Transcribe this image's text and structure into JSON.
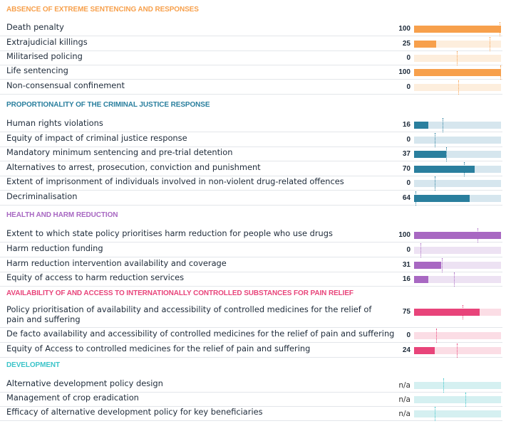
{
  "chart_data": {
    "type": "bar",
    "orientation": "horizontal",
    "xlim": [
      0,
      100
    ],
    "sections": [
      {
        "title": "ABSENCE OF EXTREME SENTENCING AND RESPONSES",
        "color": "#f7a04c",
        "light": "#fdeedd",
        "rows": [
          {
            "label": "Death penalty",
            "value": 100,
            "value_label": "100",
            "marker": 98
          },
          {
            "label": "Extrajudicial killings",
            "value": 25,
            "value_label": "25",
            "marker": 87
          },
          {
            "label": "Militarised policing",
            "value": 0,
            "value_label": "0",
            "marker": 49
          },
          {
            "label": "Life sentencing",
            "value": 100,
            "value_label": "100",
            "marker": 99
          },
          {
            "label": "Non-consensual confinement",
            "value": 0,
            "value_label": "0",
            "marker": 51
          }
        ]
      },
      {
        "title": "PROPORTIONALITY OF THE CRIMINAL JUSTICE RESPONSE",
        "color": "#2a7f9e",
        "light": "#d6e6ee",
        "rows": [
          {
            "label": "Human rights violations",
            "value": 16,
            "value_label": "16",
            "marker": 33
          },
          {
            "label": "Equity of impact of criminal justice response",
            "value": 0,
            "value_label": "0",
            "marker": 24
          },
          {
            "label": "Mandatory minimum sentencing and pre-trial detention",
            "value": 37,
            "value_label": "37",
            "marker": 37
          },
          {
            "label": "Alternatives to arrest, prosecution, conviction and punishment",
            "value": 70,
            "value_label": "70",
            "marker": 57
          },
          {
            "label": "Extent of imprisonment of individuals involved in non-violent drug-related offences",
            "value": 0,
            "value_label": "0",
            "marker": 24
          },
          {
            "label": "Decriminalisation",
            "value": 64,
            "value_label": "64",
            "marker": 2
          }
        ]
      },
      {
        "title": "HEALTH AND HARM REDUCTION",
        "color": "#a868c2",
        "light": "#ede2f3",
        "rows": [
          {
            "label": "Extent to which state policy prioritises harm reduction for people who use drugs",
            "value": 100,
            "value_label": "100",
            "marker": 73
          },
          {
            "label": "Harm reduction funding",
            "value": 0,
            "value_label": "0",
            "marker": 7
          },
          {
            "label": "Harm reduction intervention availability and coverage",
            "value": 31,
            "value_label": "31",
            "marker": 32
          },
          {
            "label": "Equity of access to harm reduction services",
            "value": 16,
            "value_label": "16",
            "marker": 46
          }
        ]
      },
      {
        "title": "AVAILABILITY OF AND ACCESS TO INTERNATIONALLY CONTROLLED SUBSTANCES FOR PAIN RELIEF",
        "color": "#e8447a",
        "light": "#fbdde5",
        "rows": [
          {
            "label": "Policy prioritisation of availability and accessibility of controlled medicines for the relief of pain and suffering",
            "value": 75,
            "value_label": "75",
            "marker": 56
          },
          {
            "label": "De facto availability and accessibility of controlled medicines for the relief of pain and suffering",
            "value": 0,
            "value_label": "0",
            "marker": 25
          },
          {
            "label": "Equity of Access to controlled medicines for the relief of pain and suffering",
            "value": 24,
            "value_label": "24",
            "marker": 49
          }
        ]
      },
      {
        "title": "DEVELOPMENT",
        "color": "#3cc4c9",
        "light": "#d5f0f1",
        "rows": [
          {
            "label": "Alternative development policy design",
            "value": null,
            "value_label": "n/a",
            "marker": 34
          },
          {
            "label": "Management of crop eradication",
            "value": null,
            "value_label": "n/a",
            "marker": 59
          },
          {
            "label": "Efficacy of alternative development policy for key beneficiaries",
            "value": null,
            "value_label": "n/a",
            "marker": 24
          }
        ]
      }
    ]
  }
}
